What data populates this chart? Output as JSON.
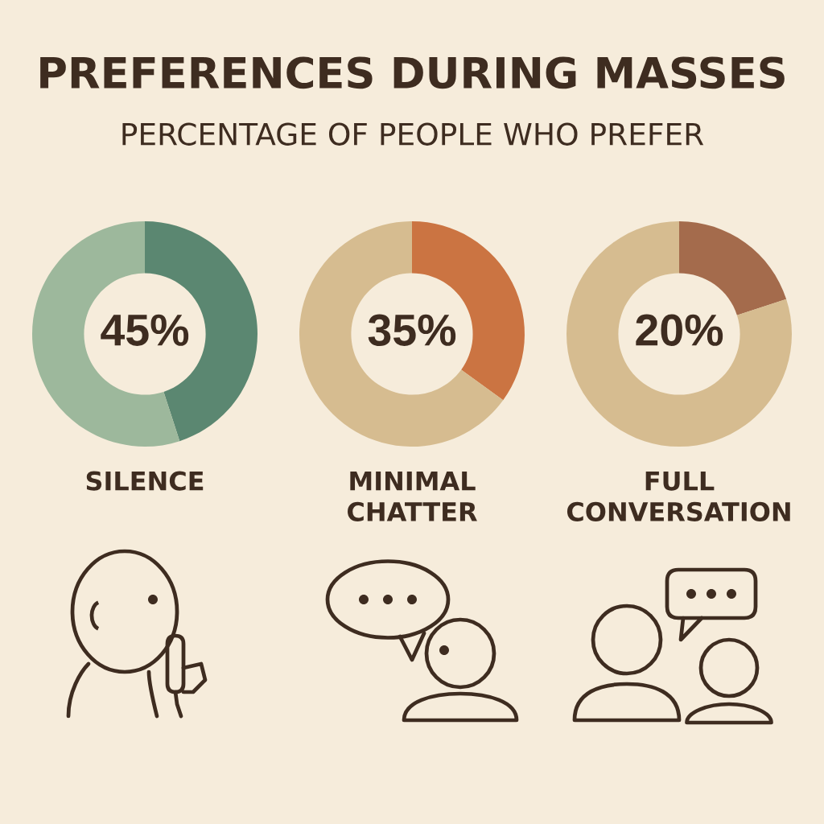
{
  "chart_data": [
    {
      "type": "other",
      "title": "PREFERENCES DURING MASSES",
      "subtitle": "PERCENTAGE OF PEOPLE WHO PREFER"
    },
    {
      "type": "donut",
      "title": "SILENCE",
      "categories": [
        null,
        null
      ],
      "values": [
        45,
        55
      ],
      "colors": [
        "#5b8771",
        "#9db89c"
      ],
      "value_labels": [
        "45%",
        null
      ]
    },
    {
      "type": "donut",
      "title": "MINIMAL\nCHATTER",
      "categories": [
        null,
        null
      ],
      "values": [
        35,
        65
      ],
      "colors": [
        "#cb7442",
        "#d6bc90"
      ],
      "value_labels": [
        "35%",
        null
      ]
    },
    {
      "type": "donut",
      "title": "FULL\nCONVERSATION",
      "categories": [
        null,
        null
      ],
      "values": [
        20,
        80
      ],
      "colors": [
        "#a46b4c",
        "#d6bc90"
      ],
      "value_labels": [
        "20%",
        null
      ]
    }
  ]
}
